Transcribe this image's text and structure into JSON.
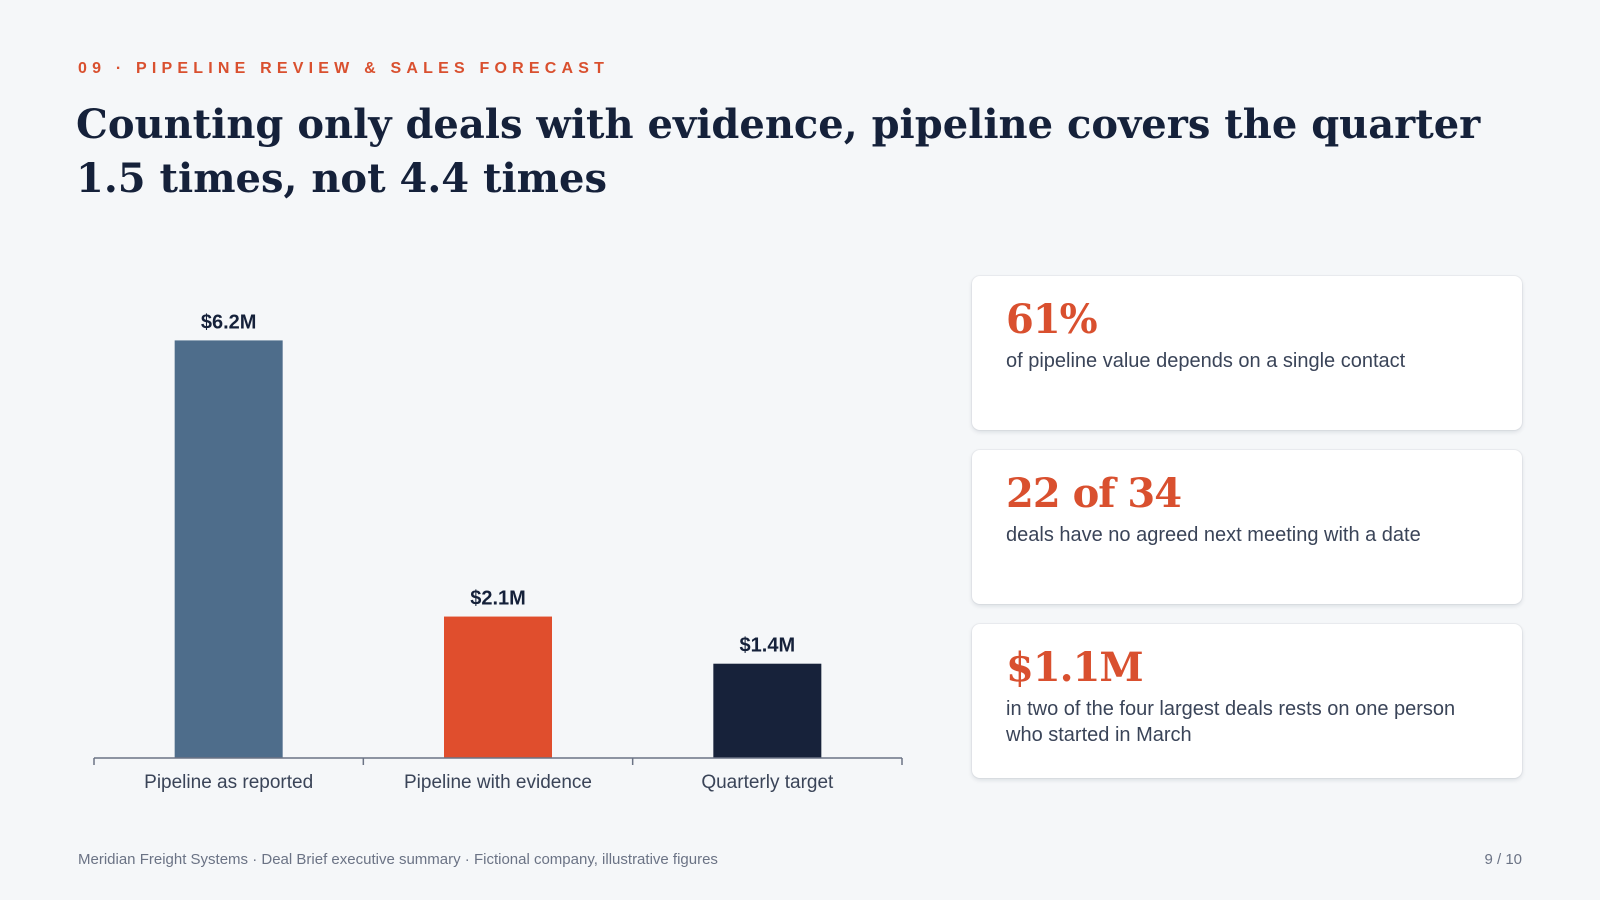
{
  "kicker": "09 · PIPELINE REVIEW & SALES FORECAST",
  "title": "Counting only deals with evidence, pipeline covers the quarter 1.5 times, not 4.4 times",
  "chart_data": {
    "type": "bar",
    "categories": [
      "Pipeline as reported",
      "Pipeline with evidence",
      "Quarterly target"
    ],
    "values": [
      6.2,
      2.1,
      1.4
    ],
    "value_labels": [
      "$6.2M",
      "$2.1M",
      "$1.4M"
    ],
    "colors": [
      "#4e6d8b",
      "#e04e2d",
      "#17223a"
    ],
    "ylim": [
      0,
      6.8
    ],
    "grid": false,
    "title": "",
    "xlabel": "",
    "ylabel": ""
  },
  "cards": [
    {
      "value": "61%",
      "text": "of pipeline value depends on a single contact"
    },
    {
      "value": "22 of 34",
      "text": "deals have no agreed next meeting with a date"
    },
    {
      "value": "$1.1M",
      "text": "in two of the four largest deals rests on one person who started in March"
    }
  ],
  "footer": "Meridian Freight Systems · Deal Brief executive summary · Fictional company, illustrative figures",
  "page": "9 / 10",
  "colors": {
    "accent": "#d9502f",
    "title": "#15213a",
    "background": "#f5f7f9"
  }
}
